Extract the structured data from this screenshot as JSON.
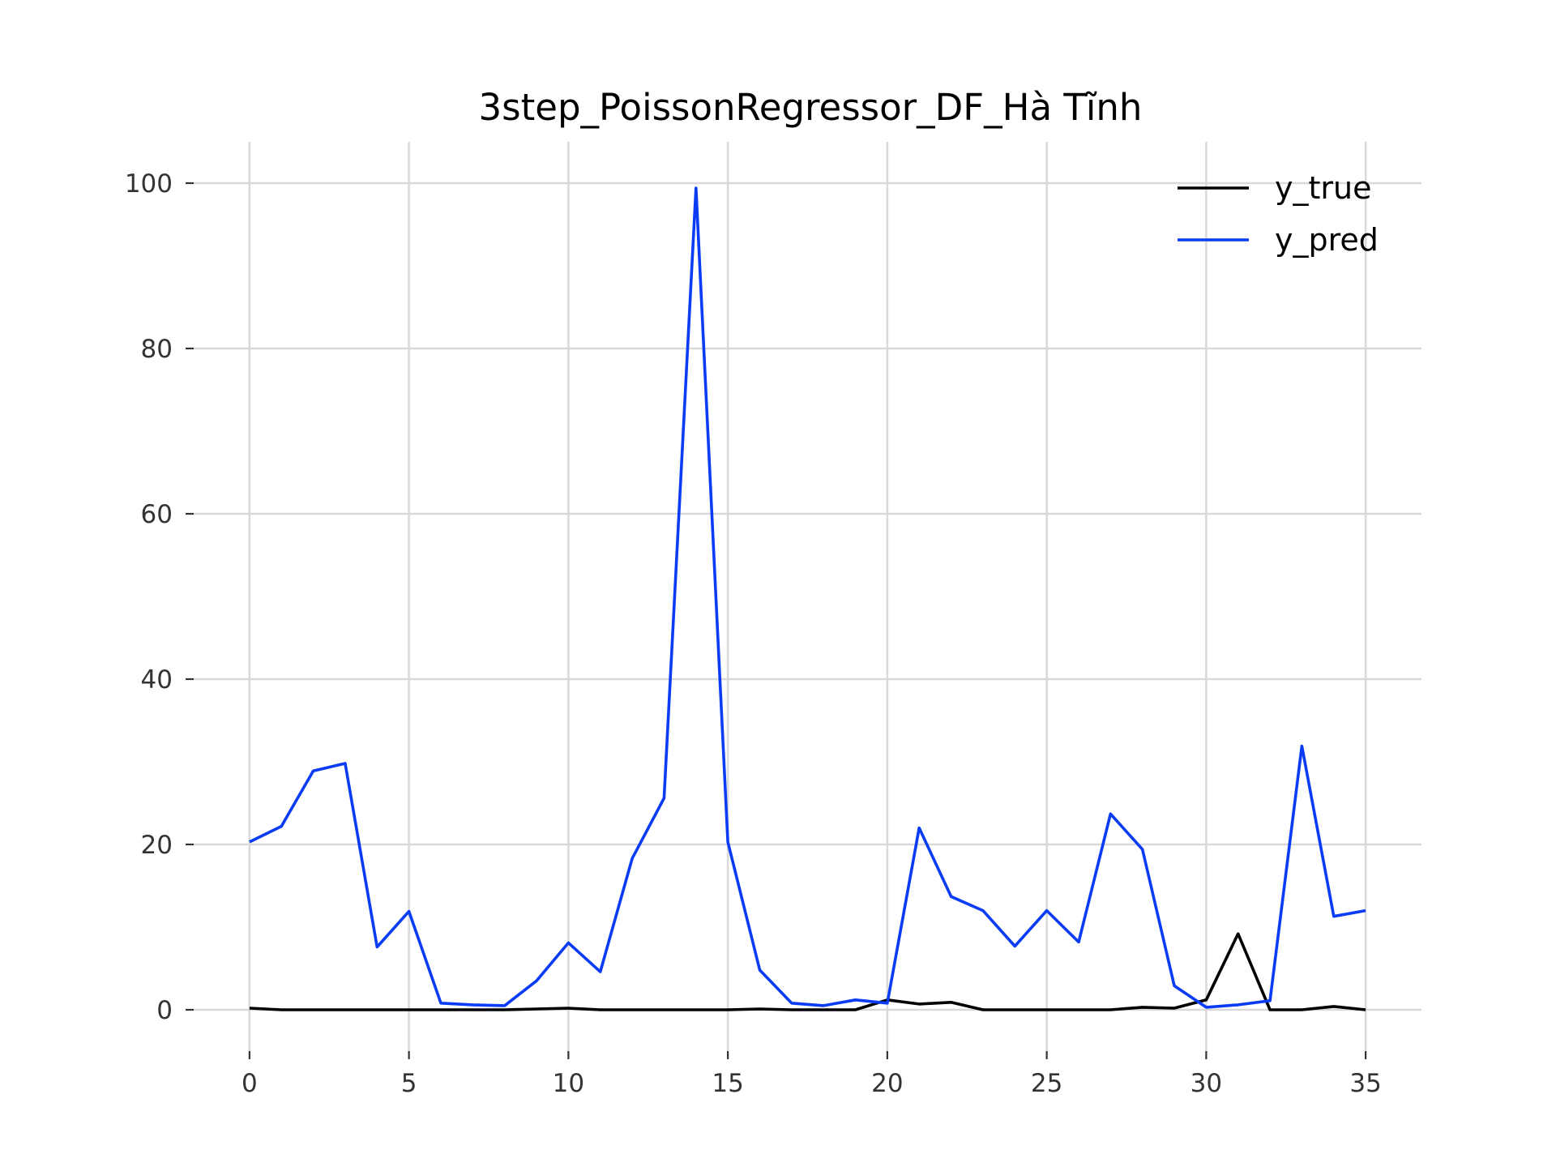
{
  "chart_data": {
    "type": "line",
    "title": "3step_PoissonRegressor_DF_Hà Tĩnh",
    "xlabel": "",
    "ylabel": "",
    "xlim": [
      -1.75,
      36.75
    ],
    "ylim": [
      -5,
      105
    ],
    "x_ticks": [
      0,
      5,
      10,
      15,
      20,
      25,
      30,
      35
    ],
    "y_ticks": [
      0,
      20,
      40,
      60,
      80,
      100
    ],
    "grid": true,
    "legend_position": "top-right",
    "x": [
      0,
      1,
      2,
      3,
      4,
      5,
      6,
      7,
      8,
      9,
      10,
      11,
      12,
      13,
      14,
      15,
      16,
      17,
      18,
      19,
      20,
      21,
      22,
      23,
      24,
      25,
      26,
      27,
      28,
      29,
      30,
      31,
      32,
      33,
      34,
      35
    ],
    "series": [
      {
        "name": "y_true",
        "color": "#000000",
        "values": [
          0.2,
          0,
          0,
          0,
          0,
          0,
          0,
          0,
          0,
          0.1,
          0.2,
          0,
          0,
          0,
          0,
          0,
          0.1,
          0,
          0,
          0,
          1.2,
          0.7,
          0.9,
          0,
          0,
          0,
          0,
          0,
          0.3,
          0.2,
          1.2,
          9.2,
          0,
          0,
          0.4,
          0
        ]
      },
      {
        "name": "y_pred",
        "color": "#0a3cf5",
        "values": [
          20.3,
          22.2,
          28.9,
          29.8,
          7.6,
          11.9,
          0.8,
          0.6,
          0.5,
          3.5,
          8.1,
          4.6,
          18.3,
          25.6,
          99.4,
          20.3,
          4.8,
          0.8,
          0.5,
          1.2,
          0.8,
          22.0,
          13.7,
          12.0,
          7.7,
          12.0,
          8.2,
          23.7,
          19.4,
          2.9,
          0.3,
          0.6,
          1.1,
          31.9,
          11.3,
          12.0
        ]
      }
    ]
  }
}
